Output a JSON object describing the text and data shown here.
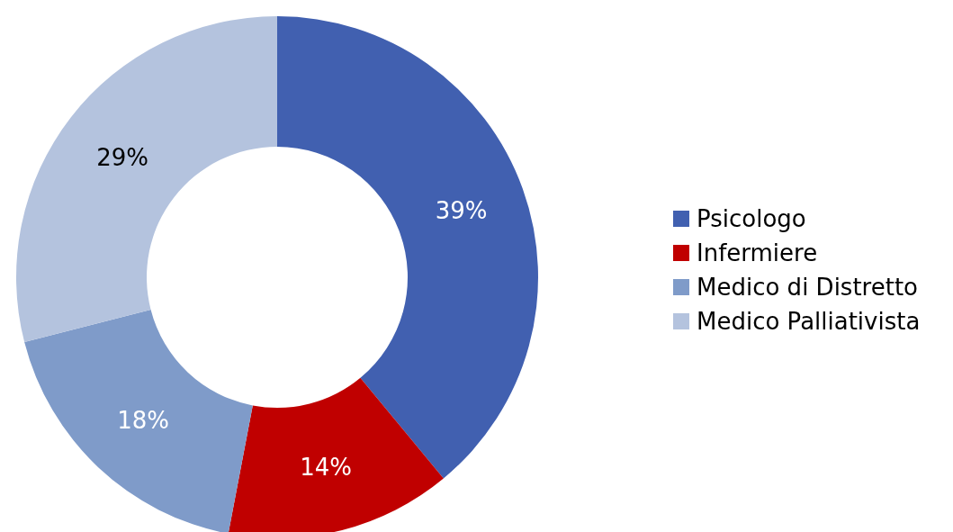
{
  "chart_data": {
    "type": "donut",
    "categories": [
      "Psicologo",
      "Infermiere",
      "Medico di Distretto",
      "Medico Palliativista"
    ],
    "values": [
      39,
      14,
      18,
      29
    ],
    "value_labels": [
      "39%",
      "14%",
      "18%",
      "29%"
    ],
    "colors": [
      "#4160b0",
      "#c00000",
      "#7f9bc9",
      "#b4c3de"
    ],
    "legend": "right"
  }
}
